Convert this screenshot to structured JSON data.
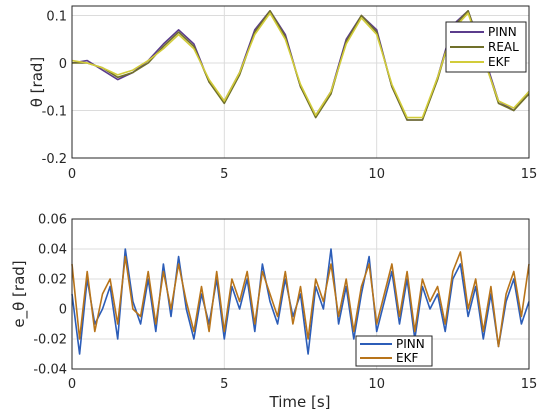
{
  "chart_data": [
    {
      "type": "line",
      "ylabel": "θ [rad]",
      "xlabel": "",
      "xlim": [
        0,
        15
      ],
      "ylim": [
        -0.2,
        0.12
      ],
      "xticks": [
        "0",
        "5",
        "10",
        "15"
      ],
      "yticks": [
        "-0.2",
        "-0.1",
        "0",
        "0.1"
      ],
      "grid": true,
      "legend_position": "top-right",
      "series": [
        {
          "name": "PINN",
          "color": "#5b3c8c",
          "signal": "theta",
          "x": [
            0,
            0.5,
            1,
            1.5,
            2,
            2.5,
            3,
            3.5,
            4,
            4.5,
            5,
            5.5,
            6,
            6.5,
            7,
            7.5,
            8,
            8.5,
            9,
            9.5,
            10,
            10.5,
            11,
            11.5,
            12,
            12.5,
            13,
            13.5,
            14,
            14.5,
            15
          ],
          "values": [
            0.0,
            0.005,
            -0.015,
            -0.035,
            -0.02,
            0.005,
            0.04,
            0.07,
            0.04,
            -0.04,
            -0.08,
            -0.02,
            0.07,
            0.11,
            0.06,
            -0.05,
            -0.11,
            -0.06,
            0.05,
            0.1,
            0.07,
            -0.05,
            -0.12,
            -0.12,
            -0.03,
            0.08,
            0.11,
            0.02,
            -0.08,
            -0.1,
            -0.06
          ]
        },
        {
          "name": "REAL",
          "color": "#70702a",
          "signal": "theta",
          "x": [
            0,
            0.5,
            1,
            1.5,
            2,
            2.5,
            3,
            3.5,
            4,
            4.5,
            5,
            5.5,
            6,
            6.5,
            7,
            7.5,
            8,
            8.5,
            9,
            9.5,
            10,
            10.5,
            11,
            11.5,
            12,
            12.5,
            13,
            13.5,
            14,
            14.5,
            15
          ],
          "values": [
            0.0,
            0.0,
            -0.01,
            -0.03,
            -0.02,
            0.0,
            0.035,
            0.065,
            0.035,
            -0.04,
            -0.085,
            -0.025,
            0.065,
            0.11,
            0.055,
            -0.05,
            -0.115,
            -0.065,
            0.045,
            0.1,
            0.065,
            -0.05,
            -0.12,
            -0.12,
            -0.035,
            0.075,
            0.11,
            0.015,
            -0.085,
            -0.1,
            -0.065
          ]
        },
        {
          "name": "EKF",
          "color": "#d2cc3a",
          "signal": "theta",
          "x": [
            0,
            0.5,
            1,
            1.5,
            2,
            2.5,
            3,
            3.5,
            4,
            4.5,
            5,
            5.5,
            6,
            6.5,
            7,
            7.5,
            8,
            8.5,
            9,
            9.5,
            10,
            10.5,
            11,
            11.5,
            12,
            12.5,
            13,
            13.5,
            14,
            14.5,
            15
          ],
          "values": [
            0.005,
            0.0,
            -0.01,
            -0.025,
            -0.015,
            0.005,
            0.03,
            0.06,
            0.03,
            -0.035,
            -0.08,
            -0.02,
            0.06,
            0.105,
            0.05,
            -0.045,
            -0.11,
            -0.06,
            0.04,
            0.095,
            0.06,
            -0.045,
            -0.115,
            -0.115,
            -0.03,
            0.07,
            0.105,
            0.01,
            -0.08,
            -0.095,
            -0.06
          ]
        }
      ]
    },
    {
      "type": "line",
      "ylabel": "e_θ [rad]",
      "xlabel": "Time [s]",
      "xlim": [
        0,
        15
      ],
      "ylim": [
        -0.04,
        0.06
      ],
      "xticks": [
        "0",
        "5",
        "10",
        "15"
      ],
      "yticks": [
        "-0.04",
        "-0.02",
        "0",
        "0.02",
        "0.04",
        "0.06"
      ],
      "grid": true,
      "legend_position": "bottom-right",
      "series": [
        {
          "name": "PINN",
          "color": "#2c5db8",
          "signal": "error",
          "x": [
            0,
            0.25,
            0.5,
            0.75,
            1,
            1.25,
            1.5,
            1.75,
            2,
            2.25,
            2.5,
            2.75,
            3,
            3.25,
            3.5,
            3.75,
            4,
            4.25,
            4.5,
            4.75,
            5,
            5.25,
            5.5,
            5.75,
            6,
            6.25,
            6.5,
            6.75,
            7,
            7.25,
            7.5,
            7.75,
            8,
            8.25,
            8.5,
            8.75,
            9,
            9.25,
            9.5,
            9.75,
            10,
            10.25,
            10.5,
            10.75,
            11,
            11.25,
            11.5,
            11.75,
            12,
            12.25,
            12.5,
            12.75,
            13,
            13.25,
            13.5,
            13.75,
            14,
            14.25,
            14.5,
            14.75,
            15
          ],
          "values": [
            0.01,
            -0.03,
            0.02,
            -0.01,
            0.0,
            0.015,
            -0.02,
            0.04,
            0.005,
            -0.01,
            0.02,
            -0.015,
            0.03,
            -0.005,
            0.035,
            0.0,
            -0.02,
            0.01,
            -0.01,
            0.02,
            -0.02,
            0.015,
            0.0,
            0.02,
            -0.015,
            0.03,
            0.005,
            -0.01,
            0.02,
            -0.005,
            0.01,
            -0.03,
            0.015,
            0.0,
            0.04,
            -0.01,
            0.015,
            -0.02,
            0.01,
            0.035,
            -0.015,
            0.005,
            0.025,
            -0.01,
            0.02,
            -0.02,
            0.015,
            0.0,
            0.01,
            -0.015,
            0.02,
            0.03,
            -0.005,
            0.015,
            -0.02,
            0.01,
            -0.025,
            0.005,
            0.02,
            -0.01,
            0.005
          ]
        },
        {
          "name": "EKF",
          "color": "#b8741a",
          "signal": "error",
          "x": [
            0,
            0.25,
            0.5,
            0.75,
            1,
            1.25,
            1.5,
            1.75,
            2,
            2.25,
            2.5,
            2.75,
            3,
            3.25,
            3.5,
            3.75,
            4,
            4.25,
            4.5,
            4.75,
            5,
            5.25,
            5.5,
            5.75,
            6,
            6.25,
            6.5,
            6.75,
            7,
            7.25,
            7.5,
            7.75,
            8,
            8.25,
            8.5,
            8.75,
            9,
            9.25,
            9.5,
            9.75,
            10,
            10.25,
            10.5,
            10.75,
            11,
            11.25,
            11.5,
            11.75,
            12,
            12.25,
            12.5,
            12.75,
            13,
            13.25,
            13.5,
            13.75,
            14,
            14.25,
            14.5,
            14.75,
            15
          ],
          "values": [
            0.03,
            -0.02,
            0.025,
            -0.015,
            0.01,
            0.02,
            -0.01,
            0.035,
            0.0,
            -0.005,
            0.025,
            -0.01,
            0.025,
            0.0,
            0.03,
            0.005,
            -0.015,
            0.015,
            -0.015,
            0.025,
            -0.015,
            0.02,
            0.005,
            0.025,
            -0.01,
            0.025,
            0.01,
            -0.005,
            0.025,
            -0.01,
            0.015,
            -0.02,
            0.02,
            0.005,
            0.03,
            -0.005,
            0.02,
            -0.015,
            0.015,
            0.03,
            -0.01,
            0.01,
            0.03,
            -0.005,
            0.025,
            -0.015,
            0.02,
            0.005,
            0.015,
            -0.01,
            0.025,
            0.038,
            0.0,
            0.02,
            -0.015,
            0.015,
            -0.025,
            0.01,
            0.025,
            -0.005,
            0.03
          ]
        }
      ]
    }
  ]
}
